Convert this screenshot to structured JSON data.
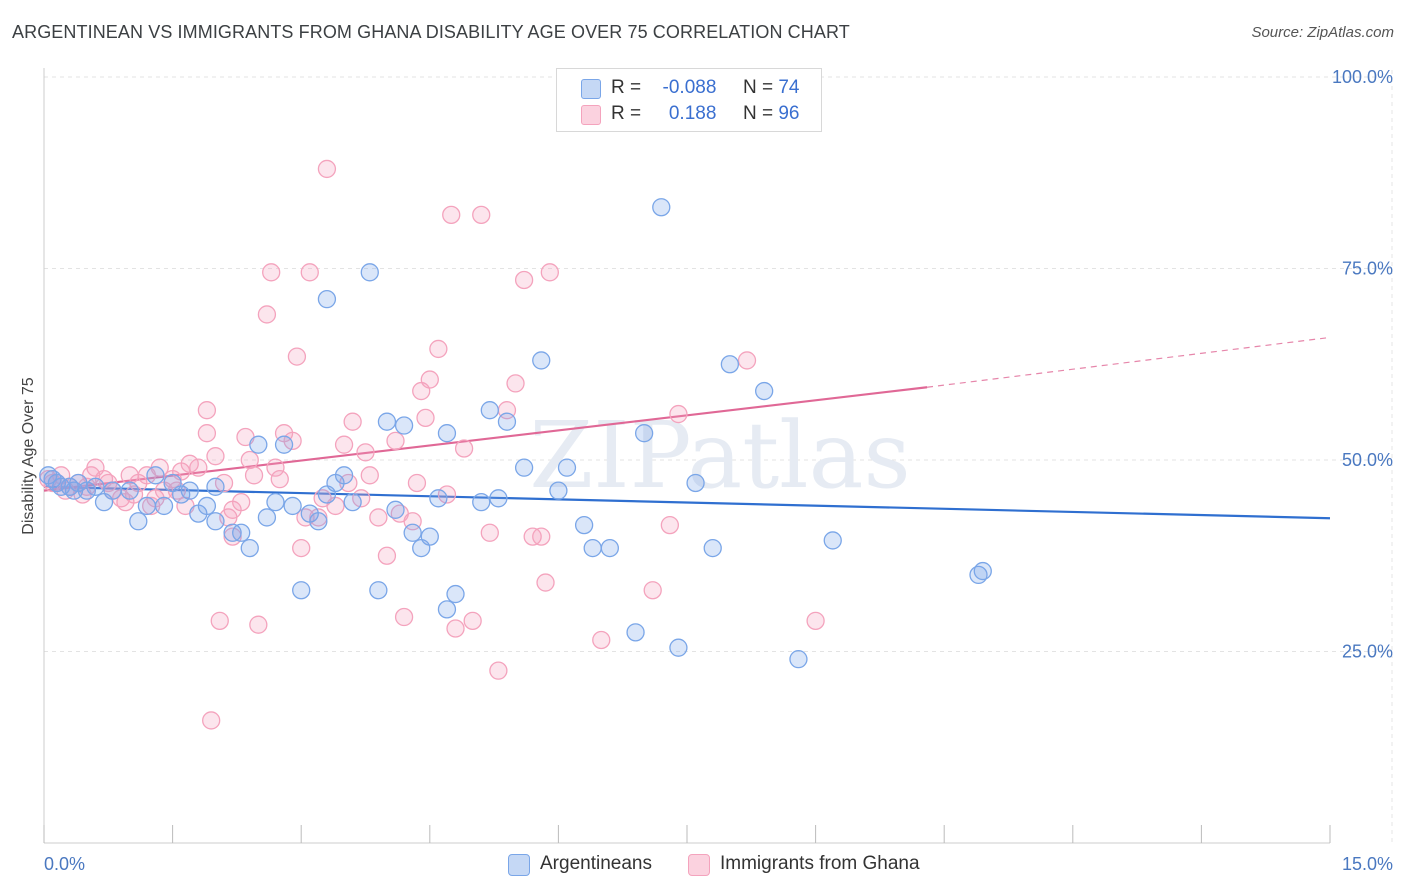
{
  "title": "ARGENTINEAN VS IMMIGRANTS FROM GHANA DISABILITY AGE OVER 75 CORRELATION CHART",
  "source": "Source: ZipAtlas.com",
  "watermark": "ZIPatlas",
  "legend": {
    "rows": [
      {
        "r_label": "R =",
        "r_value": "-0.088",
        "n_label": "N =",
        "n_value": "74",
        "color": "#7aa6e8"
      },
      {
        "r_label": "R =",
        "r_value": "0.188",
        "n_label": "N =",
        "n_value": "96",
        "color": "#f4a3bd"
      }
    ]
  },
  "chart_data": {
    "type": "scatter",
    "title": "ARGENTINEAN VS IMMIGRANTS FROM GHANA DISABILITY AGE OVER 75 CORRELATION CHART",
    "xlabel": "",
    "ylabel": "Disability Age Over 75",
    "xlim": [
      0,
      15
    ],
    "ylim": [
      0,
      100
    ],
    "x_tick_labels": [
      "0.0%",
      "15.0%"
    ],
    "y_ticks": [
      25,
      50,
      75,
      100
    ],
    "y_tick_labels": [
      "25.0%",
      "50.0%",
      "75.0%",
      "100.0%"
    ],
    "grid": true,
    "legend_position": "top-center",
    "series": [
      {
        "name": "Argentineans",
        "color": "#7aa6e8",
        "line_color": "#2f6fd0",
        "trend": {
          "x": [
            0,
            15
          ],
          "y": [
            46.5,
            42.4
          ]
        },
        "points": [
          [
            0.1,
            47.5
          ],
          [
            0.15,
            47.0
          ],
          [
            0.2,
            46.5
          ],
          [
            0.3,
            46.5
          ],
          [
            0.35,
            46.0
          ],
          [
            0.4,
            47.0
          ],
          [
            0.5,
            46.0
          ],
          [
            0.6,
            46.5
          ],
          [
            0.7,
            44.5
          ],
          [
            0.8,
            46.0
          ],
          [
            1.0,
            46.0
          ],
          [
            1.1,
            42.0
          ],
          [
            1.2,
            44.0
          ],
          [
            1.3,
            48.0
          ],
          [
            1.4,
            44.0
          ],
          [
            1.5,
            47.0
          ],
          [
            1.6,
            45.5
          ],
          [
            1.7,
            46.0
          ],
          [
            1.8,
            43.0
          ],
          [
            1.9,
            44.0
          ],
          [
            2.0,
            42.0
          ],
          [
            2.0,
            46.5
          ],
          [
            2.2,
            40.5
          ],
          [
            2.3,
            40.5
          ],
          [
            2.4,
            38.5
          ],
          [
            2.5,
            52.0
          ],
          [
            2.6,
            42.5
          ],
          [
            2.7,
            44.5
          ],
          [
            2.8,
            52.0
          ],
          [
            2.9,
            44.0
          ],
          [
            3.0,
            33.0
          ],
          [
            3.1,
            43.0
          ],
          [
            3.2,
            42.0
          ],
          [
            3.3,
            45.5
          ],
          [
            3.3,
            71.0
          ],
          [
            3.4,
            47.0
          ],
          [
            3.5,
            48.0
          ],
          [
            3.6,
            44.5
          ],
          [
            3.8,
            74.5
          ],
          [
            3.9,
            33.0
          ],
          [
            4.0,
            55.0
          ],
          [
            4.1,
            43.5
          ],
          [
            4.2,
            54.5
          ],
          [
            4.3,
            40.5
          ],
          [
            4.4,
            38.5
          ],
          [
            4.5,
            40.0
          ],
          [
            4.6,
            45.0
          ],
          [
            4.7,
            53.5
          ],
          [
            4.7,
            30.5
          ],
          [
            4.8,
            32.5
          ],
          [
            5.1,
            44.5
          ],
          [
            5.2,
            56.5
          ],
          [
            5.3,
            45.0
          ],
          [
            5.4,
            55.0
          ],
          [
            5.6,
            49.0
          ],
          [
            5.8,
            63.0
          ],
          [
            6.0,
            46.0
          ],
          [
            6.1,
            49.0
          ],
          [
            6.3,
            41.5
          ],
          [
            6.4,
            38.5
          ],
          [
            6.6,
            38.5
          ],
          [
            6.9,
            27.5
          ],
          [
            7.0,
            53.5
          ],
          [
            7.2,
            83.0
          ],
          [
            7.4,
            25.5
          ],
          [
            7.6,
            47.0
          ],
          [
            7.8,
            38.5
          ],
          [
            8.0,
            62.5
          ],
          [
            8.4,
            59.0
          ],
          [
            8.8,
            24.0
          ],
          [
            9.2,
            39.5
          ],
          [
            10.9,
            35.0
          ],
          [
            10.95,
            35.5
          ],
          [
            0.05,
            48.0
          ]
        ]
      },
      {
        "name": "Immigrants from Ghana",
        "color": "#f4a3bd",
        "line_color": "#e06896",
        "trend": {
          "x": [
            0,
            10.3
          ],
          "y": [
            46.0,
            59.5
          ]
        },
        "trend_dashed": {
          "x": [
            10.3,
            15
          ],
          "y": [
            59.5,
            66.0
          ]
        },
        "points": [
          [
            0.05,
            47.5
          ],
          [
            0.1,
            47.0
          ],
          [
            0.2,
            48.0
          ],
          [
            0.3,
            46.5
          ],
          [
            0.4,
            47.0
          ],
          [
            0.5,
            46.5
          ],
          [
            0.6,
            49.0
          ],
          [
            0.7,
            47.5
          ],
          [
            0.8,
            46.0
          ],
          [
            0.9,
            45.0
          ],
          [
            1.0,
            48.0
          ],
          [
            1.1,
            47.0
          ],
          [
            1.2,
            48.0
          ],
          [
            1.3,
            45.0
          ],
          [
            1.4,
            46.0
          ],
          [
            1.5,
            47.5
          ],
          [
            1.6,
            48.5
          ],
          [
            1.7,
            49.5
          ],
          [
            1.8,
            49.0
          ],
          [
            1.9,
            56.5
          ],
          [
            1.9,
            53.5
          ],
          [
            2.0,
            50.5
          ],
          [
            2.1,
            47.0
          ],
          [
            2.15,
            42.5
          ],
          [
            2.2,
            43.5
          ],
          [
            2.2,
            40.0
          ],
          [
            2.3,
            44.5
          ],
          [
            2.4,
            50.0
          ],
          [
            2.5,
            28.5
          ],
          [
            2.6,
            69.0
          ],
          [
            2.65,
            74.5
          ],
          [
            2.7,
            49.0
          ],
          [
            2.8,
            53.5
          ],
          [
            2.9,
            52.5
          ],
          [
            2.95,
            63.5
          ],
          [
            3.0,
            38.5
          ],
          [
            3.1,
            74.5
          ],
          [
            3.2,
            42.5
          ],
          [
            3.3,
            88.0
          ],
          [
            3.4,
            44.0
          ],
          [
            3.5,
            52.0
          ],
          [
            3.6,
            55.0
          ],
          [
            3.7,
            45.0
          ],
          [
            3.8,
            48.0
          ],
          [
            3.9,
            42.5
          ],
          [
            4.0,
            37.5
          ],
          [
            4.1,
            52.5
          ],
          [
            4.2,
            29.5
          ],
          [
            4.3,
            42.0
          ],
          [
            4.4,
            59.0
          ],
          [
            4.45,
            55.5
          ],
          [
            4.5,
            60.5
          ],
          [
            4.6,
            64.5
          ],
          [
            4.7,
            45.5
          ],
          [
            4.75,
            82.0
          ],
          [
            4.8,
            28.0
          ],
          [
            4.9,
            51.5
          ],
          [
            5.0,
            29.0
          ],
          [
            5.1,
            82.0
          ],
          [
            5.2,
            40.5
          ],
          [
            5.3,
            22.5
          ],
          [
            5.4,
            56.5
          ],
          [
            5.5,
            60.0
          ],
          [
            5.6,
            73.5
          ],
          [
            5.7,
            40.0
          ],
          [
            5.8,
            40.0
          ],
          [
            5.9,
            74.5
          ],
          [
            5.85,
            34.0
          ],
          [
            6.5,
            26.5
          ],
          [
            7.1,
            33.0
          ],
          [
            7.3,
            41.5
          ],
          [
            7.4,
            56.0
          ],
          [
            8.2,
            63.0
          ],
          [
            9.0,
            29.0
          ],
          [
            1.95,
            16.0
          ],
          [
            2.05,
            29.0
          ],
          [
            0.45,
            45.5
          ],
          [
            1.25,
            44.0
          ],
          [
            1.35,
            49.0
          ],
          [
            0.95,
            44.5
          ],
          [
            2.45,
            48.0
          ],
          [
            3.05,
            42.5
          ],
          [
            3.55,
            47.0
          ],
          [
            3.25,
            45.0
          ],
          [
            4.15,
            43.0
          ],
          [
            0.25,
            46.0
          ],
          [
            0.55,
            48.0
          ],
          [
            1.55,
            46.0
          ],
          [
            1.65,
            44.0
          ],
          [
            2.35,
            53.0
          ],
          [
            3.75,
            51.0
          ],
          [
            4.35,
            47.0
          ],
          [
            0.75,
            47.0
          ],
          [
            1.05,
            45.5
          ],
          [
            2.75,
            47.5
          ],
          [
            0.15,
            47.0
          ]
        ]
      }
    ]
  }
}
